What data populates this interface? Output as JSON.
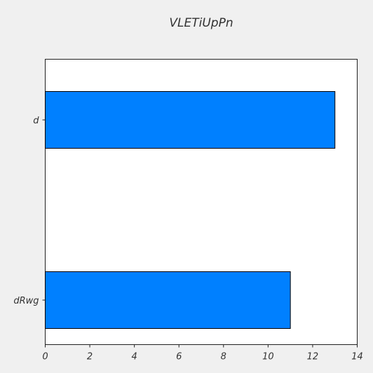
{
  "chart_data": {
    "type": "bar",
    "orientation": "horizontal",
    "title": "VLETiUpPn",
    "xlabel": "",
    "ylabel": "",
    "categories": [
      "d",
      "dRwg"
    ],
    "values": [
      13,
      11
    ],
    "xlim": [
      0,
      14
    ],
    "xticks": [
      "0",
      "2",
      "4",
      "6",
      "8",
      "10",
      "12",
      "14"
    ],
    "grid": false,
    "legend": "none",
    "bar_color": "#0080ff",
    "bar_edge_color": "#000000",
    "background_color": "#f0f0f0",
    "plot_background_color": "#ffffff"
  }
}
